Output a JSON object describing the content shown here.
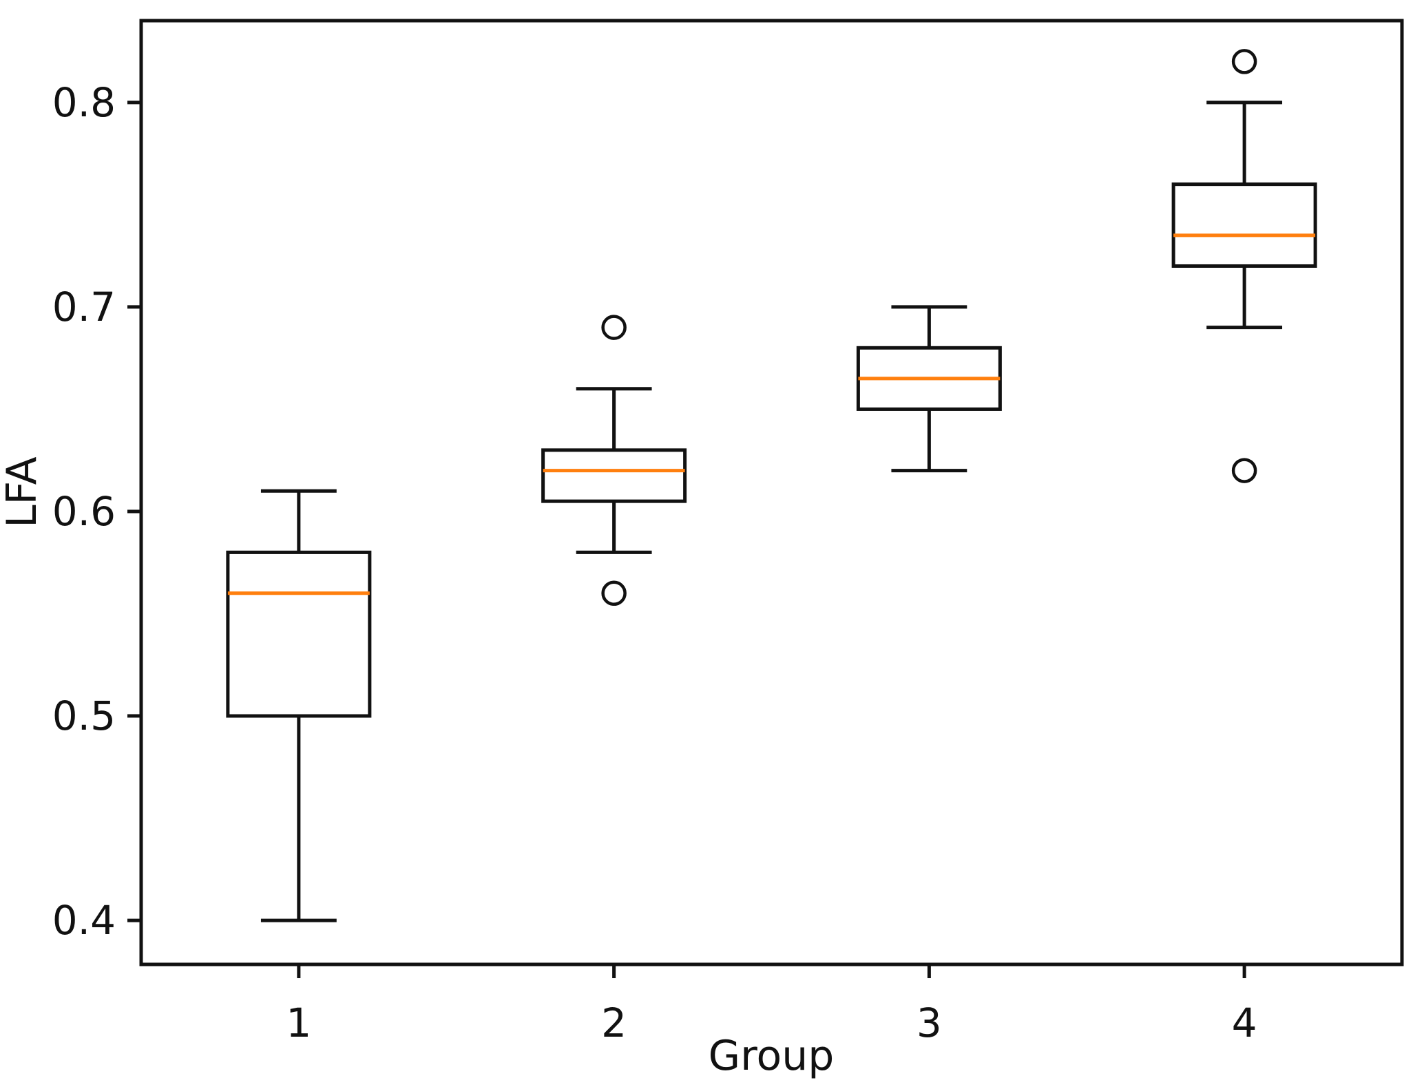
{
  "chart_data": {
    "type": "boxplot",
    "title": "",
    "xlabel": "Group",
    "ylabel": "LFA",
    "categories": [
      "1",
      "2",
      "3",
      "4"
    ],
    "positions": [
      1,
      2,
      3,
      4
    ],
    "series": [
      {
        "group": "1",
        "whisker_low": 0.4,
        "q1": 0.5,
        "median": 0.56,
        "q3": 0.58,
        "whisker_high": 0.61,
        "outliers": []
      },
      {
        "group": "2",
        "whisker_low": 0.58,
        "q1": 0.605,
        "median": 0.62,
        "q3": 0.63,
        "whisker_high": 0.66,
        "outliers": [
          0.56,
          0.69
        ]
      },
      {
        "group": "3",
        "whisker_low": 0.62,
        "q1": 0.65,
        "median": 0.665,
        "q3": 0.68,
        "whisker_high": 0.7,
        "outliers": []
      },
      {
        "group": "4",
        "whisker_low": 0.69,
        "q1": 0.72,
        "median": 0.735,
        "q3": 0.76,
        "whisker_high": 0.8,
        "outliers": [
          0.62,
          0.82
        ]
      }
    ],
    "y_ticks": [
      0.4,
      0.5,
      0.6,
      0.7,
      0.8
    ],
    "y_tick_labels": [
      "0.4",
      "0.5",
      "0.6",
      "0.7",
      "0.8"
    ],
    "ylim": [
      0.3785,
      0.84
    ],
    "xlim": [
      0.5,
      4.5
    ],
    "box_width_data": 0.45,
    "cap_width_data": 0.24,
    "grid": false,
    "legend": "none",
    "colors": {
      "box_stroke": "#111111",
      "median": "#ff7f0e",
      "background": "#ffffff"
    }
  }
}
